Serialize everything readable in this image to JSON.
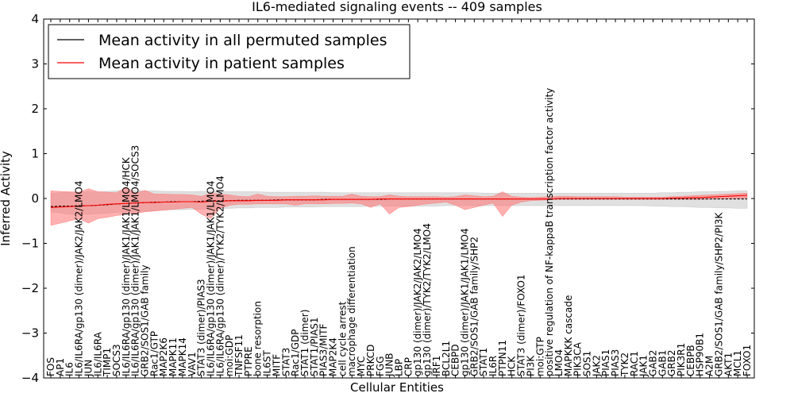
{
  "chart_data": {
    "type": "line",
    "title": "IL6-mediated signaling events -- 409 samples",
    "xlabel": "Cellular Entities",
    "ylabel": "Inferred Activity",
    "ylim": [
      -4,
      4
    ],
    "yticks": [
      -4,
      -3,
      -2,
      -1,
      0,
      1,
      2,
      3,
      4
    ],
    "legend_position": "top-left",
    "categories": [
      "FOS",
      "AP1",
      "IL6",
      "IL6/IL6RA/gp130 (dimer)/JAK2/JAK2/LMO4",
      "JUN",
      "IL6/IL6RA",
      "TIMP1",
      "SOCS3",
      "IL6/IL6RA/gp130 (dimer)/JAK1/JAK1/LMO4/HCK",
      "IL6/IL6RA/gp130 (dimer)/JAK1/JAK1/LMO4/SOCS3",
      "GRB2/SOS1/GAB family",
      "Rac1/GTP",
      "MAP2K6",
      "MAPK11",
      "MAPK14",
      "VAV1",
      "STAT3 (dimer)/PIAS3",
      "IL6/IL6RA/gp130 (dimer)/JAK1/JAK1/LMO4",
      "IL6/IL6RA/gp130 (dimer)/TYK2/TYK2/LMO4",
      "moi:GDP",
      "TNFSF11",
      "PTPRE",
      "bone resorption",
      "IL6ST",
      "MITF",
      "STAT3",
      "Rac1/GDP",
      "STAT1 (dimer)",
      "STAT1/PIAS1",
      "PIAS3/MITF",
      "MAP2K4",
      "cell cycle arrest",
      "macrophage differentiation",
      "MYC",
      "PRKCD",
      "FGG",
      "JUNB",
      "LBP",
      "CRP",
      "gp130 (dimer)/JAK2/JAK2/LMO4",
      "gp130 (dimer)/TYK2/TYK2/LMO4",
      "IRF1",
      "BCL2L1",
      "CEBPD",
      "gp130 (dimer)/JAK1/JAK1/LMO4",
      "GRB2/SOS1/GAB family/SHP2",
      "STAT1",
      "IL6R",
      "PTPN11",
      "HCK",
      "STAT3 (dimer)/FOXO1",
      "PI3K",
      "moi:GTP",
      "positive regulation of NF-kappaB transcription factor activity",
      "LMO4",
      "MAPKKK cascade",
      "PIK3CA",
      "SOS1",
      "JAK2",
      "PIAS1",
      "PIAS3",
      "TYK2",
      "RAC1",
      "JAK1",
      "GAB2",
      "GAB1",
      "GRB2",
      "PIK3R1",
      "CEBPB",
      "HSP90B1",
      "A2M",
      "GRB2/SOS1/GAB family/SHP2/PI3K",
      "AKT1",
      "MCL1",
      "FOXO1"
    ],
    "series": [
      {
        "name": "Mean activity in all permuted samples",
        "color": "#000000",
        "values": [
          -0.18,
          -0.17,
          -0.17,
          -0.16,
          -0.16,
          -0.15,
          -0.14,
          -0.12,
          -0.11,
          -0.1,
          -0.09,
          -0.08,
          -0.08,
          -0.07,
          -0.07,
          -0.07,
          -0.06,
          -0.05,
          -0.05,
          -0.05,
          -0.04,
          -0.04,
          -0.04,
          -0.04,
          -0.03,
          -0.03,
          -0.03,
          -0.03,
          -0.03,
          -0.02,
          -0.02,
          -0.02,
          -0.02,
          -0.02,
          -0.02,
          -0.02,
          -0.01,
          -0.01,
          -0.01,
          -0.01,
          -0.01,
          -0.01,
          -0.01,
          -0.01,
          -0.01,
          -0.01,
          -0.01,
          -0.01,
          -0.01,
          -0.01,
          -0.01,
          -0.01,
          -0.01,
          -0.01,
          -0.01,
          -0.01,
          -0.01,
          -0.01,
          -0.01,
          -0.01,
          -0.01,
          -0.01,
          -0.01,
          -0.01,
          -0.01,
          -0.01,
          -0.01,
          -0.01,
          -0.01,
          -0.01,
          -0.01,
          -0.01,
          -0.01,
          -0.01,
          -0.01
        ]
      },
      {
        "name": "Mean activity in patient samples",
        "color": "#ff0000",
        "values": [
          -0.2,
          -0.19,
          -0.18,
          -0.17,
          -0.16,
          -0.15,
          -0.13,
          -0.12,
          -0.11,
          -0.1,
          -0.09,
          -0.09,
          -0.08,
          -0.08,
          -0.07,
          -0.07,
          -0.08,
          -0.06,
          -0.06,
          -0.05,
          -0.05,
          -0.05,
          -0.04,
          -0.04,
          -0.04,
          -0.03,
          -0.03,
          -0.03,
          -0.03,
          -0.03,
          -0.02,
          -0.02,
          -0.02,
          -0.02,
          -0.02,
          -0.01,
          -0.01,
          -0.01,
          -0.01,
          -0.01,
          -0.01,
          -0.01,
          -0.01,
          -0.01,
          -0.01,
          -0.01,
          -0.01,
          -0.01,
          -0.01,
          -0.01,
          -0.01,
          -0.01,
          -0.01,
          -0.01,
          0.0,
          0.0,
          0.0,
          0.0,
          0.0,
          0.0,
          0.0,
          0.0,
          0.0,
          0.0,
          0.0,
          0.0,
          0.01,
          0.01,
          0.02,
          0.02,
          0.03,
          0.04,
          0.05,
          0.06,
          0.07
        ]
      }
    ],
    "bands": [
      {
        "name": "permuted range",
        "color": "#bbbbbb",
        "lower": [
          -0.3,
          -0.32,
          -0.35,
          -0.36,
          -0.35,
          -0.34,
          -0.33,
          -0.31,
          -0.3,
          -0.29,
          -0.28,
          -0.27,
          -0.26,
          -0.25,
          -0.25,
          -0.24,
          -0.24,
          -0.23,
          -0.22,
          -0.22,
          -0.21,
          -0.21,
          -0.2,
          -0.2,
          -0.2,
          -0.19,
          -0.19,
          -0.19,
          -0.19,
          -0.18,
          -0.18,
          -0.18,
          -0.18,
          -0.18,
          -0.17,
          -0.17,
          -0.17,
          -0.17,
          -0.17,
          -0.17,
          -0.17,
          -0.17,
          -0.16,
          -0.16,
          -0.16,
          -0.16,
          -0.16,
          -0.16,
          -0.16,
          -0.16,
          -0.16,
          -0.16,
          -0.16,
          -0.16,
          -0.16,
          -0.16,
          -0.16,
          -0.16,
          -0.16,
          -0.16,
          -0.16,
          -0.16,
          -0.16,
          -0.16,
          -0.17,
          -0.17,
          -0.18,
          -0.18,
          -0.19,
          -0.2,
          -0.2,
          -0.21,
          -0.21,
          -0.22,
          -0.22
        ],
        "upper": [
          0.12,
          0.13,
          0.14,
          0.14,
          0.15,
          0.15,
          0.16,
          0.17,
          0.18,
          0.18,
          0.17,
          0.17,
          0.16,
          0.16,
          0.16,
          0.15,
          0.16,
          0.16,
          0.16,
          0.15,
          0.15,
          0.15,
          0.15,
          0.14,
          0.14,
          0.14,
          0.14,
          0.14,
          0.14,
          0.14,
          0.13,
          0.13,
          0.13,
          0.13,
          0.13,
          0.13,
          0.13,
          0.13,
          0.13,
          0.13,
          0.13,
          0.13,
          0.13,
          0.13,
          0.13,
          0.13,
          0.12,
          0.12,
          0.12,
          0.12,
          0.12,
          0.12,
          0.12,
          0.12,
          0.12,
          0.12,
          0.12,
          0.12,
          0.12,
          0.12,
          0.12,
          0.12,
          0.12,
          0.12,
          0.12,
          0.13,
          0.13,
          0.14,
          0.14,
          0.15,
          0.15,
          0.16,
          0.16,
          0.17,
          0.17
        ]
      },
      {
        "name": "patient range",
        "color": "#ff7070",
        "lower": [
          -0.6,
          -0.55,
          -0.5,
          -0.45,
          -0.55,
          -0.45,
          -0.42,
          -0.38,
          -0.35,
          -0.33,
          -0.3,
          -0.28,
          -0.26,
          -0.24,
          -0.22,
          -0.2,
          -0.35,
          -0.45,
          -0.22,
          -0.15,
          -0.13,
          -0.13,
          -0.12,
          -0.12,
          -0.12,
          -0.12,
          -0.15,
          -0.12,
          -0.12,
          -0.12,
          -0.11,
          -0.11,
          -0.1,
          -0.12,
          -0.2,
          -0.12,
          -0.35,
          -0.2,
          -0.18,
          -0.15,
          -0.12,
          -0.1,
          -0.08,
          -0.15,
          -0.25,
          -0.2,
          -0.15,
          -0.1,
          -0.4,
          -0.15,
          -0.08,
          -0.05,
          -0.04,
          -0.03,
          -0.02,
          -0.02,
          -0.02,
          -0.02,
          -0.02,
          -0.02,
          -0.02,
          -0.02,
          -0.02,
          -0.02,
          -0.02,
          -0.02,
          -0.02,
          -0.02,
          -0.02,
          -0.02,
          -0.01,
          -0.01,
          0.0,
          0.0,
          0.0
        ],
        "upper": [
          0.17,
          0.16,
          0.15,
          0.14,
          0.22,
          0.15,
          0.14,
          0.13,
          0.25,
          0.12,
          0.18,
          0.1,
          0.1,
          0.09,
          0.09,
          0.08,
          0.05,
          0.12,
          0.1,
          0.08,
          0.05,
          0.04,
          0.1,
          0.05,
          0.04,
          0.04,
          0.05,
          0.05,
          0.06,
          0.05,
          0.05,
          0.05,
          0.1,
          0.05,
          0.04,
          0.04,
          0.08,
          0.05,
          0.04,
          0.04,
          0.04,
          0.04,
          0.03,
          0.04,
          0.08,
          0.06,
          0.04,
          0.05,
          0.15,
          0.05,
          0.03,
          0.02,
          0.03,
          0.04,
          0.05,
          0.05,
          0.04,
          0.04,
          0.04,
          0.04,
          0.04,
          0.03,
          0.03,
          0.03,
          0.03,
          0.03,
          0.04,
          0.05,
          0.06,
          0.07,
          0.08,
          0.09,
          0.1,
          0.11,
          0.12
        ]
      }
    ]
  }
}
